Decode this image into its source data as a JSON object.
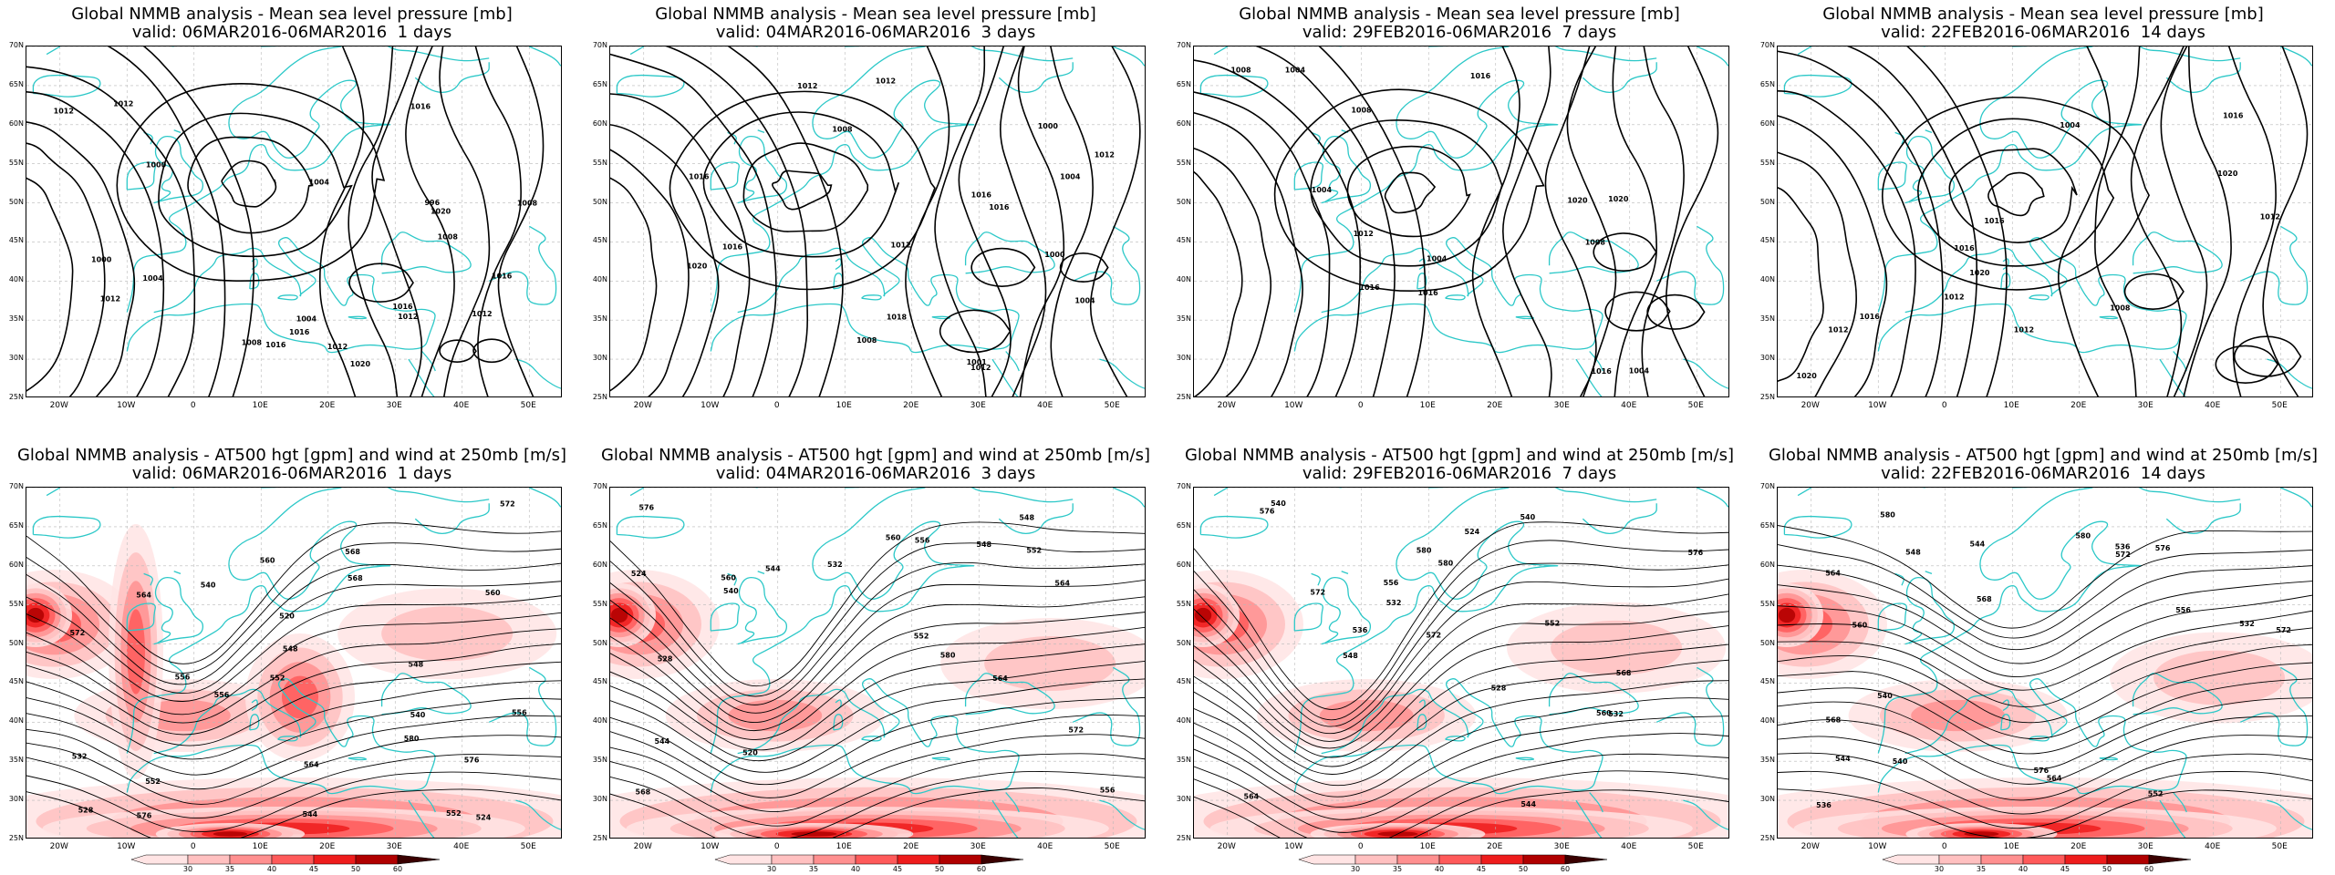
{
  "colors": {
    "coast": "#2cc8c8",
    "contour": "#000000",
    "grid": "#b8b8b8"
  },
  "axes": {
    "lat_labels": [
      "70N",
      "65N",
      "60N",
      "55N",
      "50N",
      "45N",
      "40N",
      "35N",
      "30N",
      "25N"
    ],
    "lon_labels": [
      "20W",
      "10W",
      "0",
      "10E",
      "20E",
      "30E",
      "40E",
      "50E"
    ],
    "lat_values": [
      70,
      65,
      60,
      55,
      50,
      45,
      40,
      35,
      30,
      25
    ],
    "lon_values": [
      -20,
      -10,
      0,
      10,
      20,
      30,
      40,
      50
    ],
    "xlim": [
      -25,
      55
    ],
    "ylim": [
      25,
      70
    ]
  },
  "colorbar": {
    "ticks": [
      "30",
      "35",
      "40",
      "45",
      "50",
      "60"
    ],
    "colors": [
      "#ffe4e4",
      "#ffc0c0",
      "#ff9090",
      "#ff5a5a",
      "#ee1c1c",
      "#b00000",
      "#3a0000"
    ]
  },
  "panels": [
    {
      "title1": "Global NMMB analysis - Mean sea level pressure [mb]",
      "title2": "valid: 06MAR2016-06MAR2016  1 days",
      "labels": [
        "1008",
        "1004",
        "1004",
        "1012",
        "1008",
        "1012",
        "1016",
        "1000",
        "996",
        "1000",
        "1004",
        "1012",
        "1016",
        "1020",
        "1016",
        "1012",
        "1016",
        "1012",
        "1016",
        "1020",
        "1012",
        "1008"
      ]
    },
    {
      "title1": "Global NMMB analysis - Mean sea level pressure [mb]",
      "title2": "valid: 04MAR2016-06MAR2016  3 days",
      "labels": [
        "1004",
        "1000",
        "1000",
        "1004",
        "1008",
        "1001",
        "1012",
        "1016",
        "1012",
        "1008",
        "1012",
        "1016",
        "1016",
        "1012",
        "1018",
        "1016",
        "1020",
        "1012"
      ]
    },
    {
      "title1": "Global NMMB analysis - Mean sea level pressure [mb]",
      "title2": "valid: 29FEB2016-06MAR2016  7 days",
      "labels": [
        "1004",
        "1004",
        "1004",
        "1008",
        "1004",
        "1008",
        "1016",
        "1012",
        "1016",
        "1020",
        "1020",
        "1016",
        "1008",
        "1016"
      ]
    },
    {
      "title1": "Global NMMB analysis - Mean sea level pressure [mb]",
      "title2": "valid: 22FEB2016-06MAR2016  14 days",
      "labels": [
        "1012",
        "1004",
        "1012",
        "1008",
        "1012",
        "1020",
        "1016",
        "1016",
        "1012",
        "1020",
        "1016",
        "1020",
        "1016"
      ]
    },
    {
      "title1": "Global NMMB analysis - AT500 hgt [gpm] and wind at 250mb [m/s]",
      "title2": "valid: 06MAR2016-06MAR2016  1 days",
      "labels": [
        "520",
        "524",
        "540",
        "544",
        "548",
        "552",
        "556",
        "548",
        "552",
        "556",
        "560",
        "564",
        "568",
        "572",
        "576",
        "580",
        "540",
        "552",
        "556",
        "560",
        "564",
        "568",
        "572",
        "576",
        "532",
        "528"
      ]
    },
    {
      "title1": "Global NMMB analysis - AT500 hgt [gpm] and wind at 250mb [m/s]",
      "title2": "valid: 04MAR2016-06MAR2016  3 days",
      "labels": [
        "524",
        "520",
        "528",
        "532",
        "540",
        "544",
        "548",
        "552",
        "556",
        "560",
        "564",
        "568",
        "572",
        "576",
        "580",
        "544",
        "548",
        "552",
        "556",
        "560",
        "564"
      ]
    },
    {
      "title1": "Global NMMB analysis - AT500 hgt [gpm] and wind at 250mb [m/s]",
      "title2": "valid: 29FEB2016-06MAR2016  7 days",
      "labels": [
        "524",
        "528",
        "532",
        "536",
        "540",
        "544",
        "548",
        "552",
        "556",
        "560",
        "564",
        "568",
        "572",
        "576",
        "580",
        "532",
        "540",
        "572",
        "576",
        "580"
      ]
    },
    {
      "title1": "Global NMMB analysis - AT500 hgt [gpm] and wind at 250mb [m/s]",
      "title2": "valid: 22FEB2016-06MAR2016  14 days",
      "labels": [
        "536",
        "532",
        "536",
        "540",
        "544",
        "548",
        "552",
        "556",
        "560",
        "564",
        "568",
        "572",
        "576",
        "580",
        "540",
        "544",
        "564",
        "568",
        "572",
        "576",
        "580"
      ]
    }
  ]
}
